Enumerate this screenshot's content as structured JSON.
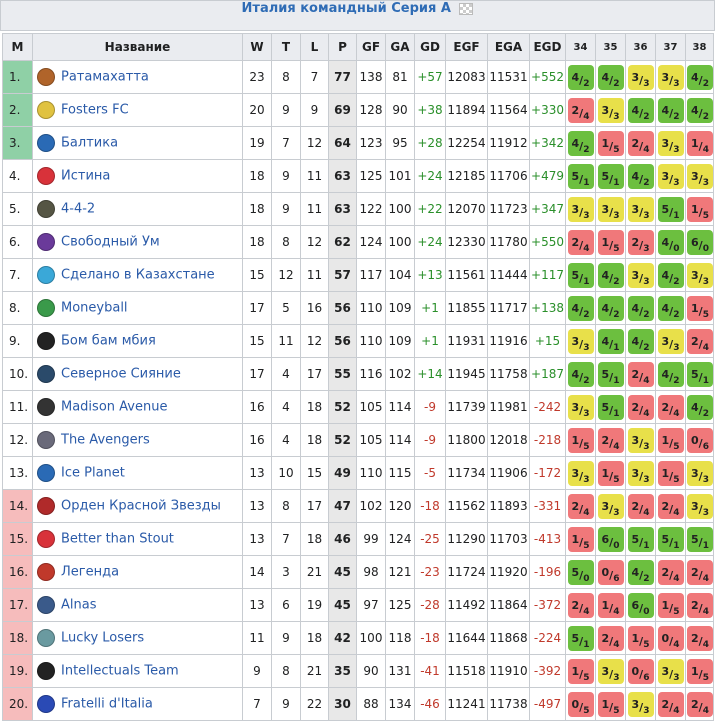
{
  "caption": {
    "title": "Италия командный Серия А"
  },
  "columns": [
    "M",
    "Название",
    "W",
    "T",
    "L",
    "P",
    "GF",
    "GA",
    "GD",
    "EGF",
    "EGA",
    "EGD",
    "34",
    "35",
    "36",
    "37",
    "38"
  ],
  "zone_colors": {
    "top": "#8fd0a6",
    "bottom": "#f6bcbc"
  },
  "rows": [
    {
      "pos": "1.",
      "zone": "top",
      "name": "Ратамахатта",
      "logo": "#b0642a",
      "w": "23",
      "t": "8",
      "l": "7",
      "p": "77",
      "gf": "138",
      "ga": "81",
      "gd": "+57",
      "egf": "12083",
      "ega": "11531",
      "egd": "+552",
      "results": [
        {
          "a": "4",
          "b": "2",
          "r": "w"
        },
        {
          "a": "4",
          "b": "2",
          "r": "w"
        },
        {
          "a": "3",
          "b": "3",
          "r": "d"
        },
        {
          "a": "3",
          "b": "3",
          "r": "d"
        },
        {
          "a": "4",
          "b": "2",
          "r": "w"
        }
      ]
    },
    {
      "pos": "2.",
      "zone": "top",
      "name": "Fosters FC",
      "logo": "#e0c240",
      "w": "20",
      "t": "9",
      "l": "9",
      "p": "69",
      "gf": "128",
      "ga": "90",
      "gd": "+38",
      "egf": "11894",
      "ega": "11564",
      "egd": "+330",
      "results": [
        {
          "a": "2",
          "b": "4",
          "r": "l"
        },
        {
          "a": "3",
          "b": "3",
          "r": "d"
        },
        {
          "a": "4",
          "b": "2",
          "r": "w"
        },
        {
          "a": "4",
          "b": "2",
          "r": "w"
        },
        {
          "a": "4",
          "b": "2",
          "r": "w"
        }
      ]
    },
    {
      "pos": "3.",
      "zone": "top",
      "name": "Балтика",
      "logo": "#2a6ab5",
      "w": "19",
      "t": "7",
      "l": "12",
      "p": "64",
      "gf": "123",
      "ga": "95",
      "gd": "+28",
      "egf": "12254",
      "ega": "11912",
      "egd": "+342",
      "results": [
        {
          "a": "4",
          "b": "2",
          "r": "w"
        },
        {
          "a": "1",
          "b": "5",
          "r": "l"
        },
        {
          "a": "2",
          "b": "4",
          "r": "l"
        },
        {
          "a": "3",
          "b": "3",
          "r": "d"
        },
        {
          "a": "1",
          "b": "4",
          "r": "l"
        }
      ]
    },
    {
      "pos": "4.",
      "zone": "",
      "name": "Истина",
      "logo": "#d8323a",
      "w": "18",
      "t": "9",
      "l": "11",
      "p": "63",
      "gf": "125",
      "ga": "101",
      "gd": "+24",
      "egf": "12185",
      "ega": "11706",
      "egd": "+479",
      "results": [
        {
          "a": "5",
          "b": "1",
          "r": "w"
        },
        {
          "a": "5",
          "b": "1",
          "r": "w"
        },
        {
          "a": "4",
          "b": "2",
          "r": "w"
        },
        {
          "a": "3",
          "b": "3",
          "r": "d"
        },
        {
          "a": "3",
          "b": "3",
          "r": "d"
        }
      ]
    },
    {
      "pos": "5.",
      "zone": "",
      "name": "4-4-2",
      "logo": "#555544",
      "w": "18",
      "t": "9",
      "l": "11",
      "p": "63",
      "gf": "122",
      "ga": "100",
      "gd": "+22",
      "egf": "12070",
      "ega": "11723",
      "egd": "+347",
      "results": [
        {
          "a": "3",
          "b": "3",
          "r": "d"
        },
        {
          "a": "3",
          "b": "3",
          "r": "d"
        },
        {
          "a": "3",
          "b": "3",
          "r": "d"
        },
        {
          "a": "5",
          "b": "1",
          "r": "w"
        },
        {
          "a": "1",
          "b": "5",
          "r": "l"
        }
      ]
    },
    {
      "pos": "6.",
      "zone": "",
      "name": "Свободный Ум",
      "logo": "#6a3a9a",
      "w": "18",
      "t": "8",
      "l": "12",
      "p": "62",
      "gf": "124",
      "ga": "100",
      "gd": "+24",
      "egf": "12330",
      "ega": "11780",
      "egd": "+550",
      "results": [
        {
          "a": "2",
          "b": "4",
          "r": "l"
        },
        {
          "a": "1",
          "b": "5",
          "r": "l"
        },
        {
          "a": "2",
          "b": "3",
          "r": "l"
        },
        {
          "a": "4",
          "b": "0",
          "r": "w"
        },
        {
          "a": "6",
          "b": "0",
          "r": "w"
        }
      ]
    },
    {
      "pos": "7.",
      "zone": "",
      "name": "Сделано в Казахстане",
      "logo": "#3aa8d8",
      "w": "15",
      "t": "12",
      "l": "11",
      "p": "57",
      "gf": "117",
      "ga": "104",
      "gd": "+13",
      "egf": "11561",
      "ega": "11444",
      "egd": "+117",
      "results": [
        {
          "a": "5",
          "b": "1",
          "r": "w"
        },
        {
          "a": "4",
          "b": "2",
          "r": "w"
        },
        {
          "a": "3",
          "b": "3",
          "r": "d"
        },
        {
          "a": "4",
          "b": "2",
          "r": "w"
        },
        {
          "a": "3",
          "b": "3",
          "r": "d"
        }
      ]
    },
    {
      "pos": "8.",
      "zone": "",
      "name": "Moneyball",
      "logo": "#3a9a4a",
      "w": "17",
      "t": "5",
      "l": "16",
      "p": "56",
      "gf": "110",
      "ga": "109",
      "gd": "+1",
      "egf": "11855",
      "ega": "11717",
      "egd": "+138",
      "results": [
        {
          "a": "4",
          "b": "2",
          "r": "w"
        },
        {
          "a": "4",
          "b": "2",
          "r": "w"
        },
        {
          "a": "4",
          "b": "2",
          "r": "w"
        },
        {
          "a": "4",
          "b": "2",
          "r": "w"
        },
        {
          "a": "1",
          "b": "5",
          "r": "l"
        }
      ]
    },
    {
      "pos": "9.",
      "zone": "",
      "name": "Бом бам мбия",
      "logo": "#222222",
      "w": "15",
      "t": "11",
      "l": "12",
      "p": "56",
      "gf": "110",
      "ga": "109",
      "gd": "+1",
      "egf": "11931",
      "ega": "11916",
      "egd": "+15",
      "results": [
        {
          "a": "3",
          "b": "3",
          "r": "d"
        },
        {
          "a": "4",
          "b": "1",
          "r": "w"
        },
        {
          "a": "4",
          "b": "2",
          "r": "w"
        },
        {
          "a": "3",
          "b": "3",
          "r": "d"
        },
        {
          "a": "2",
          "b": "4",
          "r": "l"
        }
      ]
    },
    {
      "pos": "10.",
      "zone": "",
      "name": "Северное Сияние",
      "logo": "#2a4a6a",
      "w": "17",
      "t": "4",
      "l": "17",
      "p": "55",
      "gf": "116",
      "ga": "102",
      "gd": "+14",
      "egf": "11945",
      "ega": "11758",
      "egd": "+187",
      "results": [
        {
          "a": "4",
          "b": "2",
          "r": "w"
        },
        {
          "a": "5",
          "b": "1",
          "r": "w"
        },
        {
          "a": "2",
          "b": "4",
          "r": "l"
        },
        {
          "a": "4",
          "b": "2",
          "r": "w"
        },
        {
          "a": "5",
          "b": "1",
          "r": "w"
        }
      ]
    },
    {
      "pos": "11.",
      "zone": "",
      "name": "Madison Avenue",
      "logo": "#333333",
      "w": "16",
      "t": "4",
      "l": "18",
      "p": "52",
      "gf": "105",
      "ga": "114",
      "gd": "-9",
      "egf": "11739",
      "ega": "11981",
      "egd": "-242",
      "results": [
        {
          "a": "3",
          "b": "3",
          "r": "d"
        },
        {
          "a": "5",
          "b": "1",
          "r": "w"
        },
        {
          "a": "2",
          "b": "4",
          "r": "l"
        },
        {
          "a": "2",
          "b": "4",
          "r": "l"
        },
        {
          "a": "4",
          "b": "2",
          "r": "w"
        }
      ]
    },
    {
      "pos": "12.",
      "zone": "",
      "name": "The Avengers",
      "logo": "#6a6a7a",
      "w": "16",
      "t": "4",
      "l": "18",
      "p": "52",
      "gf": "105",
      "ga": "114",
      "gd": "-9",
      "egf": "11800",
      "ega": "12018",
      "egd": "-218",
      "results": [
        {
          "a": "1",
          "b": "5",
          "r": "l"
        },
        {
          "a": "2",
          "b": "4",
          "r": "l"
        },
        {
          "a": "3",
          "b": "3",
          "r": "d"
        },
        {
          "a": "1",
          "b": "5",
          "r": "l"
        },
        {
          "a": "0",
          "b": "6",
          "r": "l"
        }
      ]
    },
    {
      "pos": "13.",
      "zone": "",
      "name": "Ice Planet",
      "logo": "#2a6ab5",
      "w": "13",
      "t": "10",
      "l": "15",
      "p": "49",
      "gf": "110",
      "ga": "115",
      "gd": "-5",
      "egf": "11734",
      "ega": "11906",
      "egd": "-172",
      "results": [
        {
          "a": "3",
          "b": "3",
          "r": "d"
        },
        {
          "a": "1",
          "b": "5",
          "r": "l"
        },
        {
          "a": "3",
          "b": "3",
          "r": "d"
        },
        {
          "a": "1",
          "b": "5",
          "r": "l"
        },
        {
          "a": "3",
          "b": "3",
          "r": "d"
        }
      ]
    },
    {
      "pos": "14.",
      "zone": "bottom",
      "name": "Орден Красной Звезды",
      "logo": "#b02a2a",
      "w": "13",
      "t": "8",
      "l": "17",
      "p": "47",
      "gf": "102",
      "ga": "120",
      "gd": "-18",
      "egf": "11562",
      "ega": "11893",
      "egd": "-331",
      "results": [
        {
          "a": "2",
          "b": "4",
          "r": "l"
        },
        {
          "a": "3",
          "b": "3",
          "r": "d"
        },
        {
          "a": "2",
          "b": "4",
          "r": "l"
        },
        {
          "a": "2",
          "b": "4",
          "r": "l"
        },
        {
          "a": "3",
          "b": "3",
          "r": "d"
        }
      ]
    },
    {
      "pos": "15.",
      "zone": "bottom",
      "name": "Better than Stout",
      "logo": "#d8323a",
      "w": "13",
      "t": "7",
      "l": "18",
      "p": "46",
      "gf": "99",
      "ga": "124",
      "gd": "-25",
      "egf": "11290",
      "ega": "11703",
      "egd": "-413",
      "results": [
        {
          "a": "1",
          "b": "5",
          "r": "l"
        },
        {
          "a": "6",
          "b": "0",
          "r": "w"
        },
        {
          "a": "5",
          "b": "1",
          "r": "w"
        },
        {
          "a": "5",
          "b": "1",
          "r": "w"
        },
        {
          "a": "5",
          "b": "1",
          "r": "w"
        }
      ]
    },
    {
      "pos": "16.",
      "zone": "bottom",
      "name": "Легенда",
      "logo": "#c0392b",
      "w": "14",
      "t": "3",
      "l": "21",
      "p": "45",
      "gf": "98",
      "ga": "121",
      "gd": "-23",
      "egf": "11724",
      "ega": "11920",
      "egd": "-196",
      "results": [
        {
          "a": "5",
          "b": "0",
          "r": "w"
        },
        {
          "a": "0",
          "b": "6",
          "r": "l"
        },
        {
          "a": "4",
          "b": "2",
          "r": "w"
        },
        {
          "a": "2",
          "b": "4",
          "r": "l"
        },
        {
          "a": "2",
          "b": "4",
          "r": "l"
        }
      ]
    },
    {
      "pos": "17.",
      "zone": "bottom",
      "name": "Alnas",
      "logo": "#3a5a8a",
      "w": "13",
      "t": "6",
      "l": "19",
      "p": "45",
      "gf": "97",
      "ga": "125",
      "gd": "-28",
      "egf": "11492",
      "ega": "11864",
      "egd": "-372",
      "results": [
        {
          "a": "2",
          "b": "4",
          "r": "l"
        },
        {
          "a": "1",
          "b": "4",
          "r": "l"
        },
        {
          "a": "6",
          "b": "0",
          "r": "w"
        },
        {
          "a": "1",
          "b": "5",
          "r": "l"
        },
        {
          "a": "2",
          "b": "4",
          "r": "l"
        }
      ]
    },
    {
      "pos": "18.",
      "zone": "bottom",
      "name": "Lucky Losers",
      "logo": "#6a9aa0",
      "w": "11",
      "t": "9",
      "l": "18",
      "p": "42",
      "gf": "100",
      "ga": "118",
      "gd": "-18",
      "egf": "11644",
      "ega": "11868",
      "egd": "-224",
      "results": [
        {
          "a": "5",
          "b": "1",
          "r": "w"
        },
        {
          "a": "2",
          "b": "4",
          "r": "l"
        },
        {
          "a": "1",
          "b": "5",
          "r": "l"
        },
        {
          "a": "0",
          "b": "4",
          "r": "l"
        },
        {
          "a": "2",
          "b": "4",
          "r": "l"
        }
      ]
    },
    {
      "pos": "19.",
      "zone": "bottom",
      "name": "Intellectuals Team",
      "logo": "#222222",
      "w": "9",
      "t": "8",
      "l": "21",
      "p": "35",
      "gf": "90",
      "ga": "131",
      "gd": "-41",
      "egf": "11518",
      "ega": "11910",
      "egd": "-392",
      "results": [
        {
          "a": "1",
          "b": "5",
          "r": "l"
        },
        {
          "a": "3",
          "b": "3",
          "r": "d"
        },
        {
          "a": "0",
          "b": "6",
          "r": "l"
        },
        {
          "a": "3",
          "b": "3",
          "r": "d"
        },
        {
          "a": "1",
          "b": "5",
          "r": "l"
        }
      ]
    },
    {
      "pos": "20.",
      "zone": "bottom",
      "name": "Fratelli d'Italia",
      "logo": "#2a4ab5",
      "w": "7",
      "t": "9",
      "l": "22",
      "p": "30",
      "gf": "88",
      "ga": "134",
      "gd": "-46",
      "egf": "11241",
      "ega": "11738",
      "egd": "-497",
      "results": [
        {
          "a": "0",
          "b": "5",
          "r": "l"
        },
        {
          "a": "1",
          "b": "5",
          "r": "l"
        },
        {
          "a": "3",
          "b": "3",
          "r": "d"
        },
        {
          "a": "2",
          "b": "4",
          "r": "l"
        },
        {
          "a": "2",
          "b": "4",
          "r": "l"
        }
      ]
    }
  ]
}
